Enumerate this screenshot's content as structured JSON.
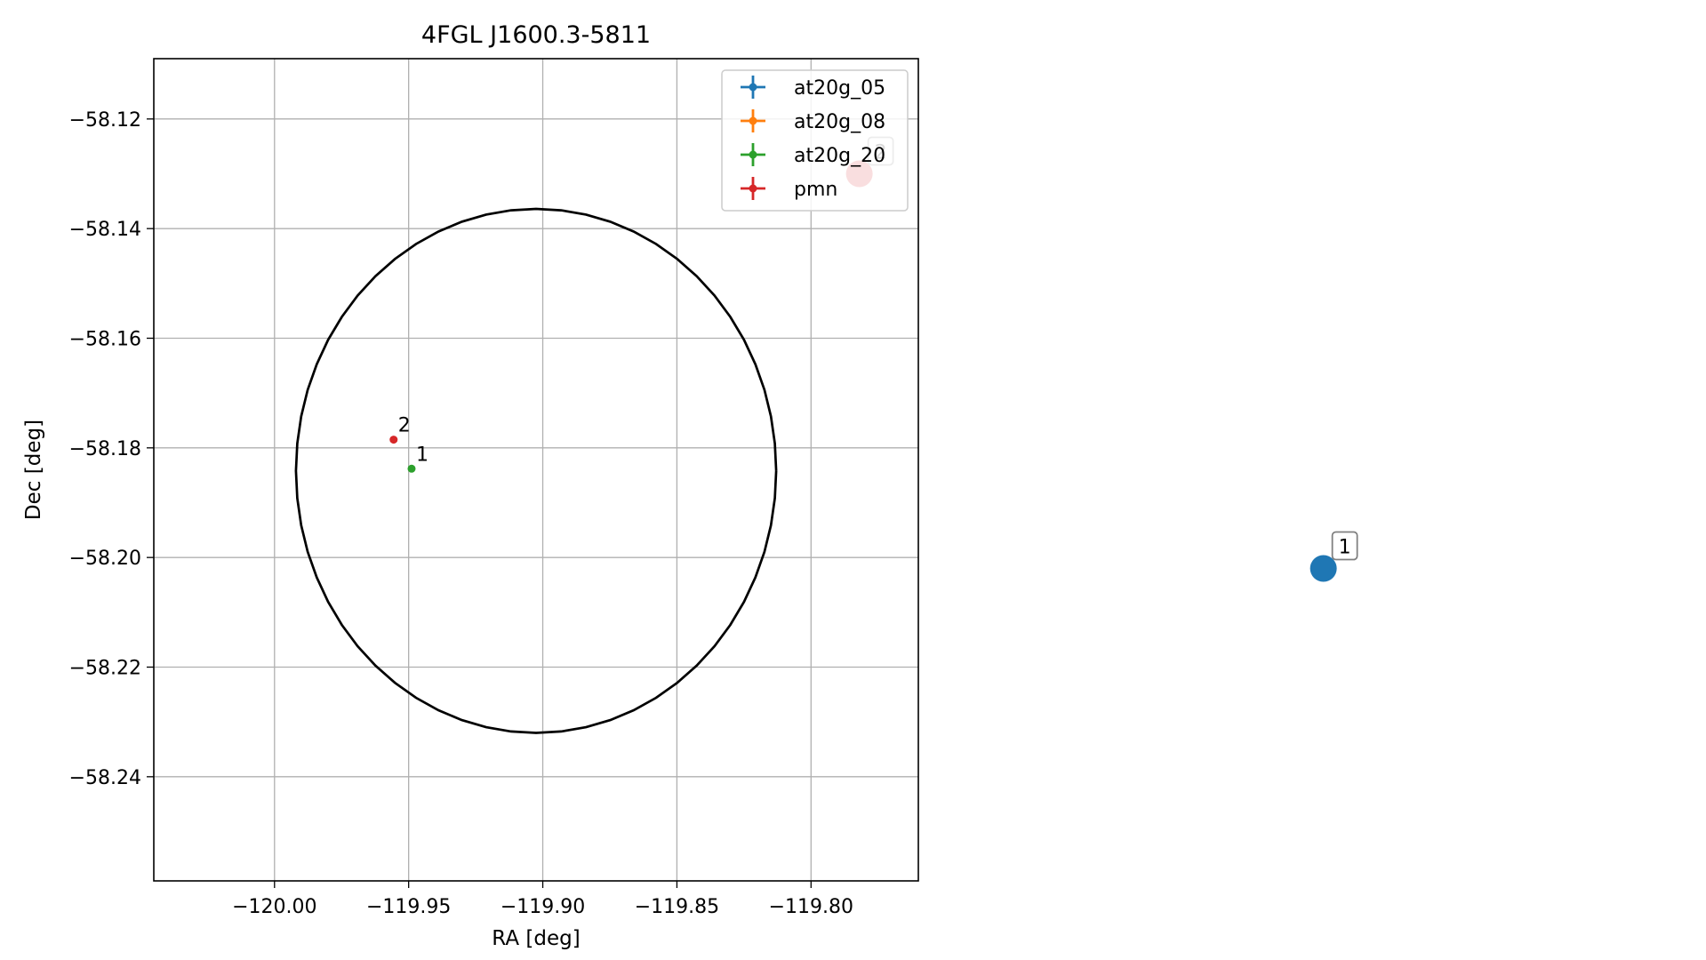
{
  "chart_data": {
    "type": "scatter",
    "title": "4FGL J1600.3-5811",
    "xlabel": "RA [deg]",
    "ylabel": "Dec [deg]",
    "xlim": [
      -120.045,
      -119.76
    ],
    "ylim": [
      -58.259,
      -58.109
    ],
    "xticks": [
      -120.0,
      -119.95,
      -119.9,
      -119.85,
      -119.8
    ],
    "xtick_labels": [
      "−120.00",
      "−119.95",
      "−119.90",
      "−119.85",
      "−119.80"
    ],
    "yticks": [
      -58.12,
      -58.14,
      -58.16,
      -58.18,
      -58.2,
      -58.22,
      -58.24
    ],
    "ytick_labels": [
      "−58.12",
      "−58.14",
      "−58.16",
      "−58.18",
      "−58.20",
      "−58.22",
      "−58.24"
    ],
    "grid": true,
    "legend_position": "top-right",
    "ellipse": {
      "center_ra": -119.9025,
      "center_dec": -58.1842,
      "ra_semi_axis": 0.0895,
      "dec_semi_axis": 0.0478,
      "color": "#000000"
    },
    "series": [
      {
        "name": "at20g_05",
        "color": "#1f77b4",
        "points": []
      },
      {
        "name": "at20g_08",
        "color": "#ff7f0e",
        "points": []
      },
      {
        "name": "at20g_20",
        "color": "#2ca02c",
        "points": [
          {
            "ra": -119.9489,
            "dec": -58.1838,
            "label": "1"
          }
        ]
      },
      {
        "name": "pmn",
        "color": "#d62728",
        "points": [
          {
            "ra": -119.9556,
            "dec": -58.1785,
            "label": "2"
          }
        ]
      }
    ],
    "outside_markers": [
      {
        "label": "2",
        "color": "#d62728",
        "ra": -119.782,
        "dec": -58.13
      },
      {
        "label": "1",
        "color": "#1f77b4",
        "ra": -119.609,
        "dec": -58.202
      }
    ]
  }
}
